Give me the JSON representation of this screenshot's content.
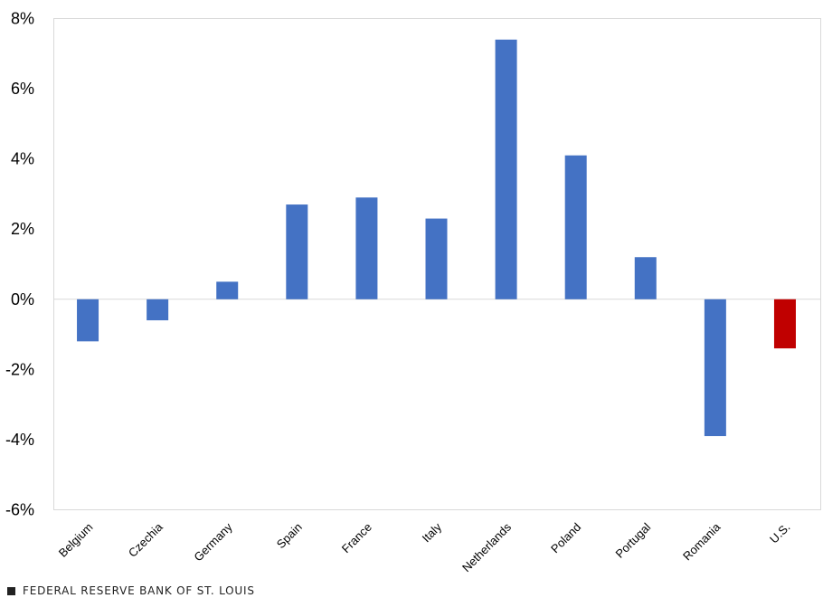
{
  "chart_data": {
    "type": "bar",
    "title": "",
    "xlabel": "",
    "ylabel": "",
    "ylim": [
      -6,
      8
    ],
    "yticks": [
      {
        "value": 8,
        "label": "8%"
      },
      {
        "value": 6,
        "label": "6%"
      },
      {
        "value": 4,
        "label": "4%"
      },
      {
        "value": 2,
        "label": "2%"
      },
      {
        "value": 0,
        "label": "0%"
      },
      {
        "value": -2,
        "label": "-2%"
      },
      {
        "value": -4,
        "label": "-4%"
      },
      {
        "value": -6,
        "label": "-6%"
      }
    ],
    "categories": [
      "Belgium",
      "Czechia",
      "Germany",
      "Spain",
      "France",
      "Italy",
      "Netherlands",
      "Poland",
      "Portugal",
      "Romania",
      "U.S."
    ],
    "values": [
      -1.2,
      -0.6,
      0.5,
      2.7,
      2.9,
      2.3,
      7.4,
      4.1,
      1.2,
      -3.9,
      -1.4
    ],
    "colors": [
      "#4472C4",
      "#4472C4",
      "#4472C4",
      "#4472C4",
      "#4472C4",
      "#4472C4",
      "#4472C4",
      "#4472C4",
      "#4472C4",
      "#4472C4",
      "#C00000"
    ],
    "grid": false
  },
  "footer": {
    "source": "FEDERAL RESERVE BANK OF ST. LOUIS"
  }
}
